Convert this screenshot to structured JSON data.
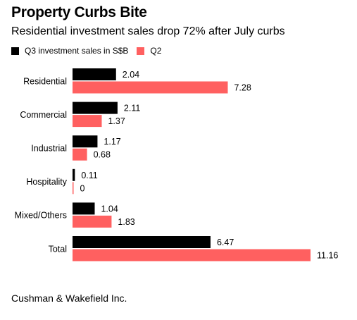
{
  "title": "Property Curbs Bite",
  "subtitle": "Residential investment sales drop 72% after July curbs",
  "source": "Cushman & Wakefield Inc.",
  "colors": {
    "q3": "#000000",
    "q2": "#ff6060",
    "text": "#000000",
    "background": "#ffffff"
  },
  "chart_data": {
    "type": "bar",
    "orientation": "horizontal",
    "categories": [
      "Residential",
      "Commercial",
      "Industrial",
      "Hospitality",
      "Mixed/Others",
      "Total"
    ],
    "series": [
      {
        "name": "Q3 investment sales in S$B",
        "values": [
          2.04,
          2.11,
          1.17,
          0.11,
          1.04,
          6.47
        ],
        "labels": [
          "2.04",
          "2.11",
          "1.17",
          "0.11",
          "1.04",
          "6.47"
        ]
      },
      {
        "name": "Q2",
        "values": [
          7.28,
          1.37,
          0.68,
          0,
          1.83,
          11.16
        ],
        "labels": [
          "7.28",
          "1.37",
          "0.68",
          "0",
          "1.83",
          "11.16"
        ]
      }
    ],
    "xlim": [
      0,
      11.16
    ],
    "grid": false,
    "legend": "top-left",
    "data_labels": true
  }
}
